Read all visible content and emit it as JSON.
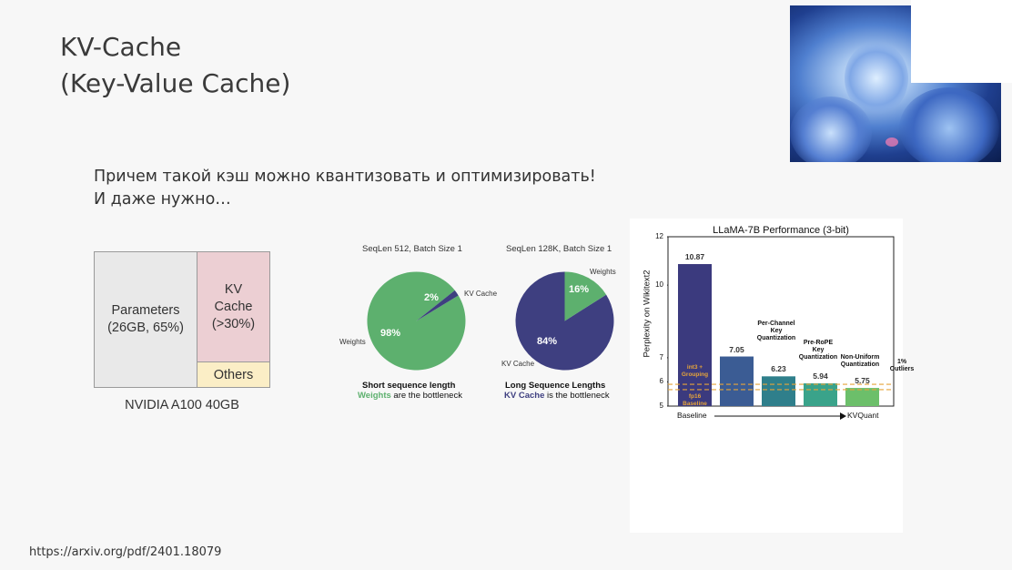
{
  "title": {
    "line1": "KV-Cache",
    "line2": "(Key-Value Cache)"
  },
  "subtitle": {
    "line1": "Причем такой кэш можно квантизовать и оптимизировать!",
    "line2": "И даже нужно…"
  },
  "memory_diagram": {
    "params_label": "Parameters",
    "params_detail": "(26GB, 65%)",
    "kv_line1": "KV",
    "kv_line2": "Cache",
    "kv_line3": "(>30%)",
    "others": "Others",
    "caption": "NVIDIA A100 40GB"
  },
  "pie_short": {
    "title": "SeqLen 512, Batch Size 1",
    "weights_label": "Weights",
    "kv_label": "KV Cache",
    "weights_pct": "98%",
    "kv_pct": "2%",
    "caption_bold": "Short sequence length",
    "caption_colored": "Weights",
    "caption_rest": "are the bottleneck",
    "weights_value": 98,
    "kv_value": 2
  },
  "pie_long": {
    "title": "SeqLen 128K, Batch Size 1",
    "weights_label": "Weights",
    "kv_label": "KV Cache",
    "weights_pct": "16%",
    "kv_pct": "84%",
    "caption_bold": "Long Sequence Lengths",
    "caption_colored": "KV Cache",
    "caption_rest": "is the bottleneck",
    "weights_value": 16,
    "kv_value": 84
  },
  "colors": {
    "weights": "#5db06e",
    "kv_cache": "#3e3f80"
  },
  "chart_data": {
    "type": "bar",
    "title": "LLaMA-7B Performance (3-bit)",
    "ylabel": "Perplexity on Wikitext2",
    "xlabel_left": "Baseline",
    "xlabel_right": "KVQuant",
    "ylim": [
      5,
      12
    ],
    "yticks": [
      5,
      6,
      7,
      10,
      12
    ],
    "categories": [
      "Baseline",
      "Per-Channel Key Quantization",
      "Pre-RoPE Key Quantization",
      "Non-Uniform Quantization",
      "1% Outliers"
    ],
    "bar_notes": [
      "",
      "Per-Channel\nKey\nQuantization",
      "Pre-RoPE\nKey\nQuantization",
      "Non-Uniform\nQuantization",
      "1%\nOutliers"
    ],
    "values": [
      10.87,
      7.05,
      6.23,
      5.94,
      5.75
    ],
    "value_labels": [
      "10.87",
      "7.05",
      "6.23",
      "5.94",
      "5.75"
    ],
    "bar_colors": [
      "#3b3a7e",
      "#3b5c94",
      "#2f7f8b",
      "#3aa38a",
      "#6cbf6a"
    ],
    "reference_lines": [
      {
        "label": "int3 +\nGrouping",
        "value": 5.9
      },
      {
        "label": "fp16\nBaseline",
        "value": 5.68
      }
    ]
  },
  "footer": {
    "url": "https://arxiv.org/pdf/2401.18079"
  }
}
